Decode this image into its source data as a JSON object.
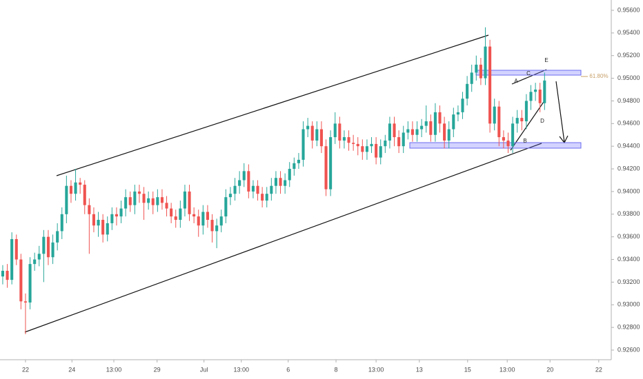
{
  "chart_data": {
    "type": "candlestick",
    "up_color": "#26a69a",
    "down_color": "#ef5350",
    "grid": false,
    "open": [
      0.9325,
      0.933,
      0.9322,
      0.9358,
      0.934,
      0.9303,
      0.9302,
      0.9336,
      0.934,
      0.9345,
      0.936,
      0.9342,
      0.9355,
      0.9365,
      0.938,
      0.9405,
      0.9398,
      0.9408,
      0.9406,
      0.9388,
      0.938,
      0.937,
      0.9375,
      0.9362,
      0.9372,
      0.938,
      0.9378,
      0.9385,
      0.9395,
      0.9388,
      0.94,
      0.9398,
      0.939,
      0.9394,
      0.9388,
      0.9395,
      0.939,
      0.9385,
      0.9378,
      0.9375,
      0.9385,
      0.94,
      0.938,
      0.9378,
      0.937,
      0.9382,
      0.9375,
      0.9365,
      0.937,
      0.9378,
      0.9395,
      0.9398,
      0.9405,
      0.941,
      0.9418,
      0.94,
      0.9405,
      0.9398,
      0.9392,
      0.9398,
      0.9405,
      0.9412,
      0.9405,
      0.941,
      0.942,
      0.9425,
      0.9428,
      0.9455,
      0.9458,
      0.9445,
      0.9455,
      0.944,
      0.9402,
      0.9448,
      0.946,
      0.9445,
      0.9448,
      0.9443,
      0.9442,
      0.944,
      0.9435,
      0.944,
      0.9442,
      0.943,
      0.944,
      0.9445,
      0.946,
      0.9448,
      0.944,
      0.9452,
      0.9455,
      0.945,
      0.9455,
      0.9458,
      0.9462,
      0.945,
      0.947,
      0.946,
      0.9445,
      0.9455,
      0.9468,
      0.947,
      0.9482,
      0.9495,
      0.9505,
      0.9512,
      0.95,
      0.9528,
      0.946,
      0.9475,
      0.9448,
      0.9445,
      0.944,
      0.946,
      0.9465,
      0.9462,
      0.948,
      0.9488,
      0.949,
      0.9478
    ],
    "high": [
      0.9335,
      0.9336,
      0.9364,
      0.9362,
      0.9345,
      0.931,
      0.9342,
      0.9346,
      0.9352,
      0.9366,
      0.9366,
      0.9362,
      0.9372,
      0.9386,
      0.9414,
      0.941,
      0.942,
      0.9412,
      0.941,
      0.9394,
      0.9386,
      0.9382,
      0.938,
      0.9378,
      0.9386,
      0.9386,
      0.9392,
      0.9402,
      0.94,
      0.9406,
      0.9406,
      0.9404,
      0.94,
      0.94,
      0.9402,
      0.9402,
      0.9396,
      0.939,
      0.9384,
      0.9392,
      0.9406,
      0.9406,
      0.9386,
      0.9384,
      0.9388,
      0.9388,
      0.938,
      0.9376,
      0.9384,
      0.9402,
      0.9404,
      0.9412,
      0.9418,
      0.9425,
      0.9424,
      0.941,
      0.941,
      0.9404,
      0.9404,
      0.9412,
      0.9418,
      0.9418,
      0.9416,
      0.9426,
      0.943,
      0.9434,
      0.9462,
      0.9465,
      0.9462,
      0.9462,
      0.9462,
      0.9446,
      0.9454,
      0.947,
      0.9466,
      0.9454,
      0.9454,
      0.945,
      0.9448,
      0.9446,
      0.9446,
      0.9448,
      0.9448,
      0.9446,
      0.945,
      0.9466,
      0.9466,
      0.9454,
      0.9458,
      0.9462,
      0.9462,
      0.9462,
      0.9464,
      0.9476,
      0.9468,
      0.9478,
      0.9476,
      0.9466,
      0.9462,
      0.9474,
      0.9476,
      0.9488,
      0.9502,
      0.9512,
      0.952,
      0.9518,
      0.9545,
      0.9534,
      0.9482,
      0.948,
      0.9454,
      0.9452,
      0.9466,
      0.9472,
      0.9472,
      0.9486,
      0.9494,
      0.9496,
      0.9496,
      0.9505
    ],
    "low": [
      0.9318,
      0.9315,
      0.9318,
      0.9335,
      0.9296,
      0.9274,
      0.9296,
      0.933,
      0.9334,
      0.932,
      0.9335,
      0.9336,
      0.9348,
      0.9358,
      0.9372,
      0.939,
      0.9392,
      0.9398,
      0.938,
      0.9345,
      0.9364,
      0.936,
      0.9355,
      0.9356,
      0.9366,
      0.937,
      0.9372,
      0.9378,
      0.9382,
      0.938,
      0.939,
      0.9375,
      0.9384,
      0.938,
      0.9382,
      0.9384,
      0.9378,
      0.9372,
      0.9368,
      0.9368,
      0.9378,
      0.9374,
      0.9372,
      0.936,
      0.9362,
      0.9368,
      0.9355,
      0.935,
      0.9364,
      0.9372,
      0.9388,
      0.9392,
      0.9398,
      0.9404,
      0.9394,
      0.9394,
      0.9392,
      0.9386,
      0.9386,
      0.9392,
      0.9398,
      0.9398,
      0.9398,
      0.9404,
      0.9414,
      0.942,
      0.9422,
      0.9448,
      0.9438,
      0.944,
      0.9434,
      0.9396,
      0.9396,
      0.9442,
      0.9438,
      0.9438,
      0.9436,
      0.9436,
      0.9432,
      0.9428,
      0.9428,
      0.9434,
      0.9424,
      0.9424,
      0.9434,
      0.9438,
      0.944,
      0.9434,
      0.9434,
      0.9446,
      0.9444,
      0.9444,
      0.9448,
      0.9452,
      0.9444,
      0.9444,
      0.9452,
      0.9438,
      0.9438,
      0.9448,
      0.9462,
      0.9464,
      0.9476,
      0.9488,
      0.9498,
      0.9494,
      0.9494,
      0.9452,
      0.9454,
      0.944,
      0.9438,
      0.9434,
      0.9434,
      0.9452,
      0.9454,
      0.9455,
      0.9472,
      0.948,
      0.947,
      0.9472
    ],
    "close": [
      0.933,
      0.9322,
      0.9358,
      0.934,
      0.9303,
      0.9302,
      0.9336,
      0.934,
      0.9345,
      0.936,
      0.9342,
      0.9355,
      0.9365,
      0.938,
      0.9405,
      0.9398,
      0.9408,
      0.9406,
      0.9388,
      0.938,
      0.937,
      0.9375,
      0.9362,
      0.9372,
      0.938,
      0.9378,
      0.9385,
      0.9395,
      0.9388,
      0.94,
      0.9398,
      0.939,
      0.9394,
      0.9388,
      0.9395,
      0.939,
      0.9385,
      0.9378,
      0.9375,
      0.9385,
      0.94,
      0.938,
      0.9378,
      0.937,
      0.9382,
      0.9375,
      0.9365,
      0.937,
      0.9378,
      0.9395,
      0.9398,
      0.9405,
      0.941,
      0.9418,
      0.94,
      0.9405,
      0.9398,
      0.9392,
      0.9398,
      0.9405,
      0.9412,
      0.9405,
      0.941,
      0.942,
      0.9425,
      0.9428,
      0.9455,
      0.9458,
      0.9445,
      0.9455,
      0.944,
      0.9402,
      0.9448,
      0.946,
      0.9445,
      0.9448,
      0.9443,
      0.9442,
      0.944,
      0.9435,
      0.944,
      0.9442,
      0.943,
      0.944,
      0.9445,
      0.946,
      0.9448,
      0.944,
      0.9452,
      0.9455,
      0.945,
      0.9455,
      0.9458,
      0.9462,
      0.945,
      0.947,
      0.946,
      0.9445,
      0.9455,
      0.9468,
      0.947,
      0.9482,
      0.9495,
      0.9505,
      0.9512,
      0.95,
      0.9528,
      0.946,
      0.9475,
      0.9448,
      0.9445,
      0.944,
      0.946,
      0.9465,
      0.9462,
      0.948,
      0.9488,
      0.949,
      0.9478,
      0.9498
    ],
    "ylim": [
      0.92515,
      0.95691
    ],
    "yticks": [
      {
        "value": 0.956,
        "label": "0.95600"
      },
      {
        "value": 0.954,
        "label": "0.95400"
      },
      {
        "value": 0.952,
        "label": "0.95200"
      },
      {
        "value": 0.95,
        "label": "0.95000"
      },
      {
        "value": 0.948,
        "label": "0.94800"
      },
      {
        "value": 0.946,
        "label": "0.94600"
      },
      {
        "value": 0.944,
        "label": "0.94400"
      },
      {
        "value": 0.942,
        "label": "0.94200"
      },
      {
        "value": 0.94,
        "label": "0.94000"
      },
      {
        "value": 0.938,
        "label": "0.93800"
      },
      {
        "value": 0.936,
        "label": "0.93600"
      },
      {
        "value": 0.934,
        "label": "0.93400"
      },
      {
        "value": 0.932,
        "label": "0.93200"
      },
      {
        "value": 0.93,
        "label": "0.93000"
      },
      {
        "value": 0.928,
        "label": "0.92800"
      },
      {
        "value": 0.926,
        "label": "0.92600"
      }
    ],
    "xlim": [
      -0.6,
      133.5
    ],
    "xticks": [
      {
        "value": 5,
        "label": "22"
      },
      {
        "value": 15.2,
        "label": "24"
      },
      {
        "value": 24.4,
        "label": "13:00"
      },
      {
        "value": 33.9,
        "label": "29"
      },
      {
        "value": 44.2,
        "label": "Jul"
      },
      {
        "value": 52.4,
        "label": "13:00"
      },
      {
        "value": 62.7,
        "label": "6"
      },
      {
        "value": 73.2,
        "label": "8"
      },
      {
        "value": 82,
        "label": "13:00"
      },
      {
        "value": 91.5,
        "label": "13"
      },
      {
        "value": 102.1,
        "label": "15"
      },
      {
        "value": 110.8,
        "label": "13:00"
      },
      {
        "value": 120.2,
        "label": "20"
      },
      {
        "value": 130.9,
        "label": "22"
      }
    ],
    "annotations": [
      "61.80%",
      "A",
      "B",
      "C",
      "D",
      "E"
    ]
  }
}
